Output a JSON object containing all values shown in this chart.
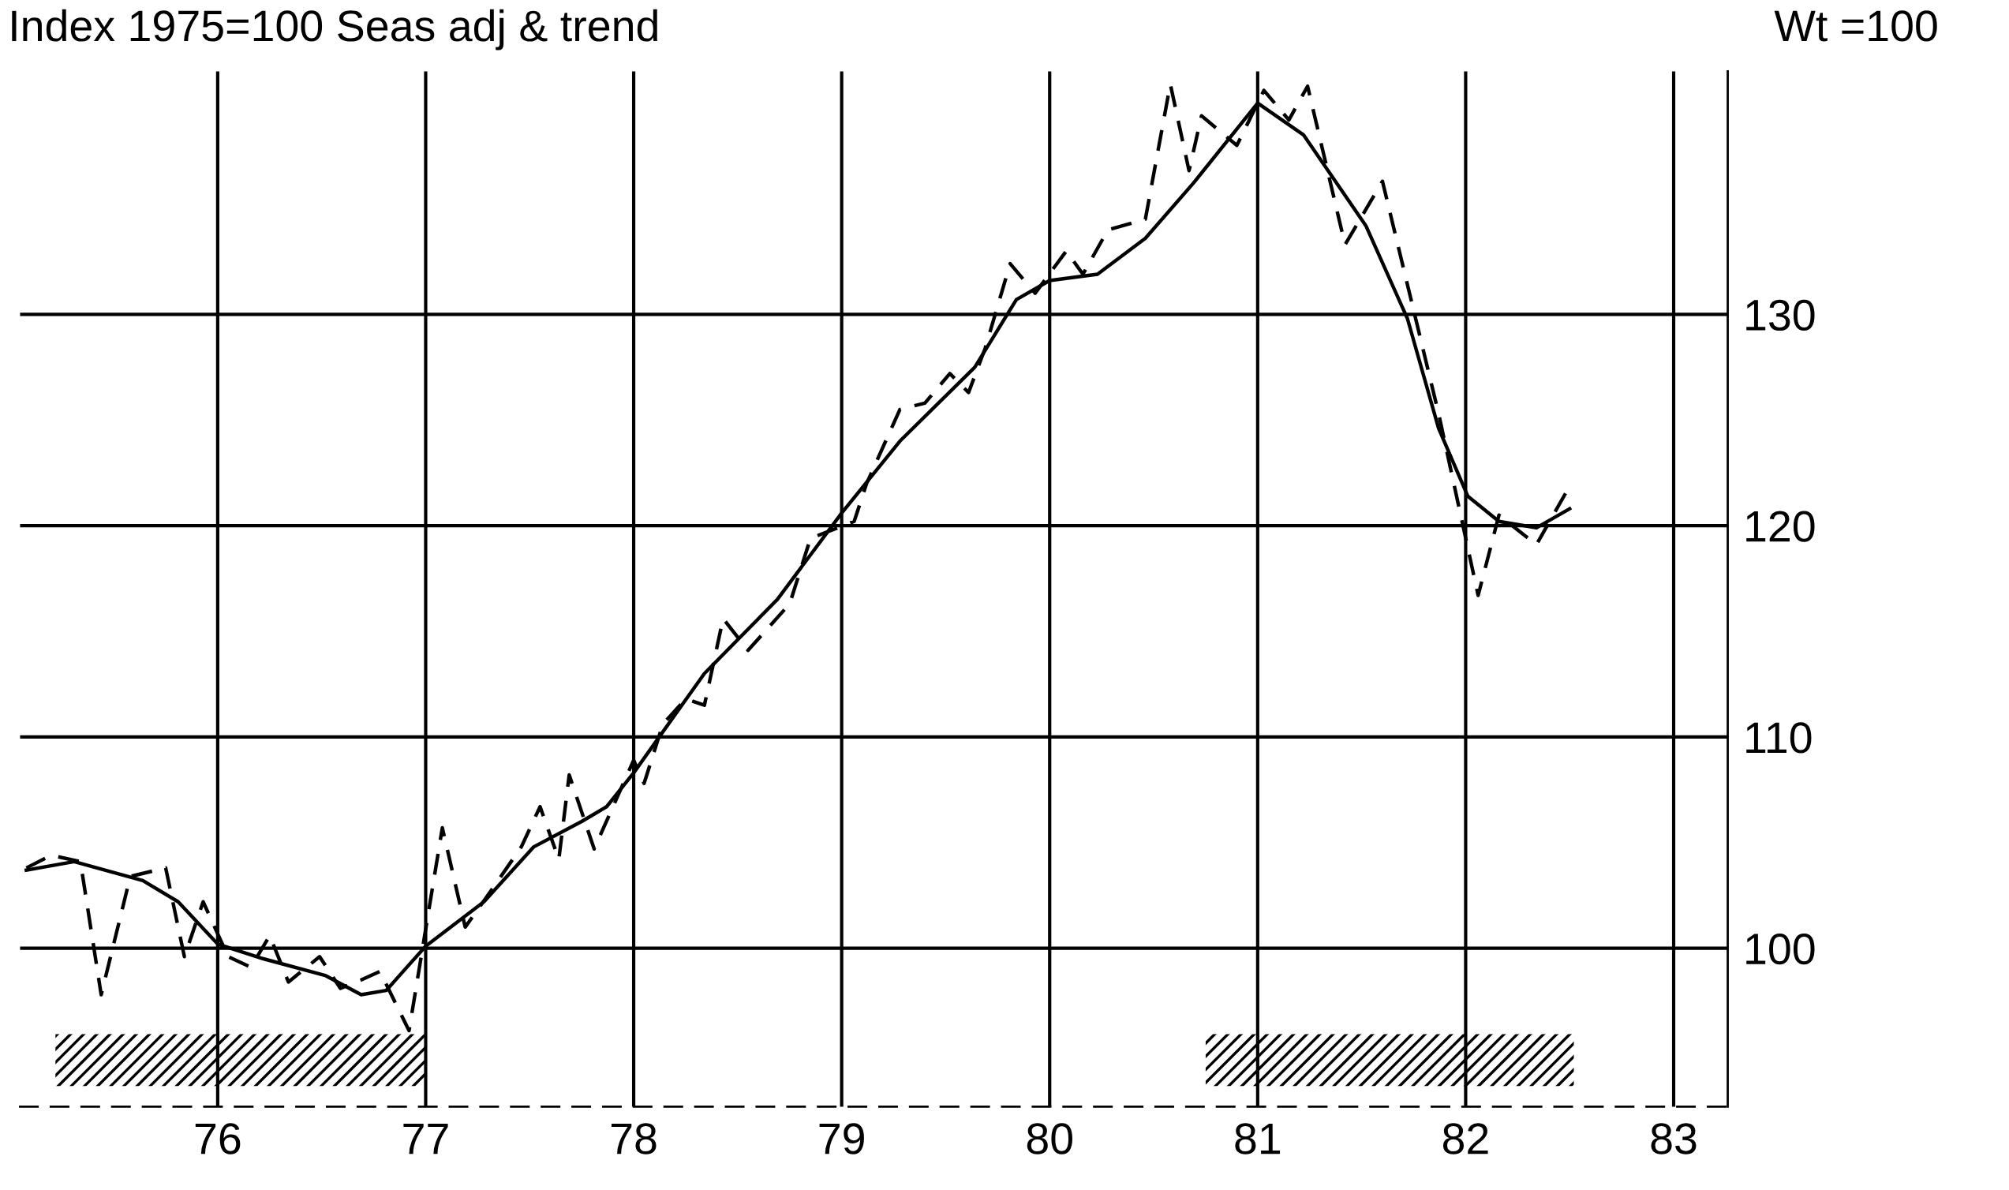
{
  "chart_data": {
    "type": "line",
    "subtitle": "Index 1975=100 Seas adj & trend",
    "annotations": [
      "Wt =100"
    ],
    "xlim": [
      75.05,
      83.26
    ],
    "ylim": [
      92.5,
      141.5
    ],
    "xticks": [
      76,
      77,
      78,
      79,
      80,
      81,
      82,
      83
    ],
    "yticks": [
      100,
      110,
      120,
      130
    ],
    "grid": true,
    "marker": "none",
    "bands": [
      {
        "axis": "x",
        "from": 75.22,
        "to": 77.0,
        "color": "#000000"
      },
      {
        "axis": "x",
        "from": 80.75,
        "to": 82.52,
        "color": "#000000"
      }
    ],
    "series": [
      {
        "color": "#000000",
        "line_style": "dashed",
        "x": [
          75.08,
          75.2,
          75.34,
          75.44,
          75.58,
          75.75,
          75.84,
          75.93,
          76.05,
          76.16,
          76.25,
          76.34,
          76.49,
          76.59,
          76.69,
          76.78,
          76.92,
          77.08,
          77.19,
          77.32,
          77.46,
          77.55,
          77.64,
          77.69,
          77.81,
          78.0,
          78.05,
          78.14,
          78.25,
          78.34,
          78.43,
          78.55,
          78.75,
          78.85,
          79.06,
          79.12,
          79.28,
          79.4,
          79.52,
          79.61,
          79.69,
          79.81,
          79.93,
          80.08,
          80.16,
          80.28,
          80.46,
          80.58,
          80.67,
          80.73,
          80.9,
          81.03,
          81.15,
          81.24,
          81.42,
          81.6,
          81.87,
          82.06,
          82.16,
          82.34,
          82.49
        ],
        "values": [
          103.8,
          104.4,
          104.1,
          97.8,
          103.4,
          103.8,
          99.6,
          102.2,
          99.6,
          99.1,
          100.6,
          98.4,
          99.6,
          98.1,
          98.5,
          98.9,
          96.1,
          105.7,
          101.0,
          102.8,
          104.8,
          106.7,
          104.2,
          108.2,
          104.7,
          108.9,
          107.8,
          110.6,
          111.8,
          111.5,
          115.6,
          114.1,
          116.3,
          119.4,
          120.2,
          122.0,
          125.5,
          125.8,
          127.2,
          126.3,
          128.4,
          132.4,
          131.0,
          133.0,
          131.9,
          134.0,
          134.5,
          140.9,
          136.8,
          139.4,
          138.0,
          140.6,
          139.2,
          140.8,
          133.3,
          136.3,
          125.3,
          116.7,
          120.5,
          119.1,
          121.7
        ]
      },
      {
        "color": "#000000",
        "line_style": "solid",
        "x": [
          75.08,
          75.31,
          75.64,
          75.81,
          76.0,
          76.22,
          76.52,
          76.69,
          76.81,
          77.0,
          77.28,
          77.52,
          77.75,
          77.87,
          78.0,
          78.34,
          78.69,
          79.0,
          79.28,
          79.64,
          79.84,
          80.0,
          80.23,
          80.46,
          80.69,
          81.0,
          81.22,
          81.52,
          81.72,
          81.87,
          82.01,
          82.16,
          82.34,
          82.5
        ],
        "values": [
          103.7,
          104.1,
          103.2,
          102.2,
          100.2,
          99.5,
          98.7,
          97.8,
          98.0,
          100.1,
          102.2,
          104.8,
          106.0,
          106.7,
          108.3,
          113.0,
          116.5,
          120.6,
          124.0,
          127.5,
          130.7,
          131.6,
          131.9,
          133.6,
          136.2,
          140.0,
          138.5,
          134.2,
          129.8,
          124.6,
          121.4,
          120.2,
          119.9,
          120.8
        ]
      }
    ]
  }
}
